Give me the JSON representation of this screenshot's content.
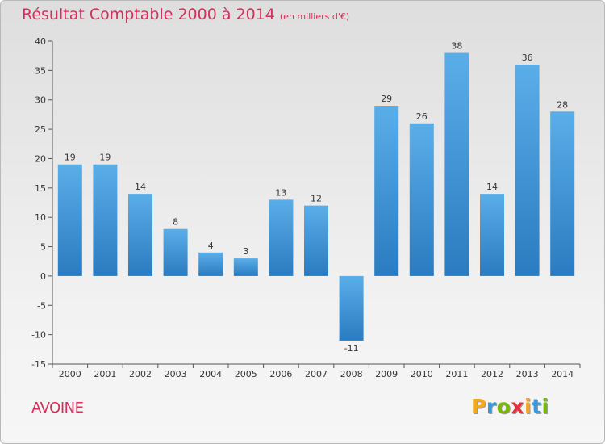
{
  "title": "Résultat Comptable 2000 à 2014",
  "subtitle": "(en milliers d'€)",
  "commune": "AVOINE",
  "logo": {
    "text": "Proxiti",
    "letters": [
      {
        "char": "P",
        "color": "#f5a623"
      },
      {
        "char": "r",
        "color": "#3a9ad9"
      },
      {
        "char": "o",
        "color": "#7ab800"
      },
      {
        "char": "x",
        "color": "#e5303a"
      },
      {
        "char": "i",
        "color": "#f5a623"
      },
      {
        "char": "t",
        "color": "#3a9ad9"
      },
      {
        "char": "i",
        "color": "#7ab800"
      }
    ]
  },
  "colors": {
    "title": "#d0305a",
    "bar_light": "#5aaee8",
    "bar_dark": "#2a7bc0",
    "axis": "#555555"
  },
  "chart_data": {
    "type": "bar",
    "title": "Résultat Comptable 2000 à 2014",
    "subtitle": "(en milliers d'€)",
    "xlabel": "",
    "ylabel": "",
    "categories": [
      "2000",
      "2001",
      "2002",
      "2003",
      "2004",
      "2005",
      "2006",
      "2007",
      "2008",
      "2009",
      "2010",
      "2011",
      "2012",
      "2013",
      "2014"
    ],
    "values": [
      19,
      19,
      14,
      8,
      4,
      3,
      13,
      12,
      -11,
      29,
      26,
      38,
      14,
      36,
      28
    ],
    "value_labels": [
      "19",
      "19",
      "14",
      "8",
      "4",
      "3",
      "13",
      "12",
      "-11",
      "29",
      "26",
      "38",
      "14",
      "36",
      "28"
    ],
    "ylim": [
      -15,
      40
    ],
    "yticks": [
      40,
      35,
      30,
      25,
      20,
      15,
      10,
      5,
      0,
      -5,
      -10,
      -15
    ],
    "ytick_labels": [
      "40",
      "35",
      "30",
      "25",
      "20",
      "15",
      "10",
      "5",
      "0",
      "-5",
      "-10",
      "-15"
    ],
    "grid": false
  }
}
